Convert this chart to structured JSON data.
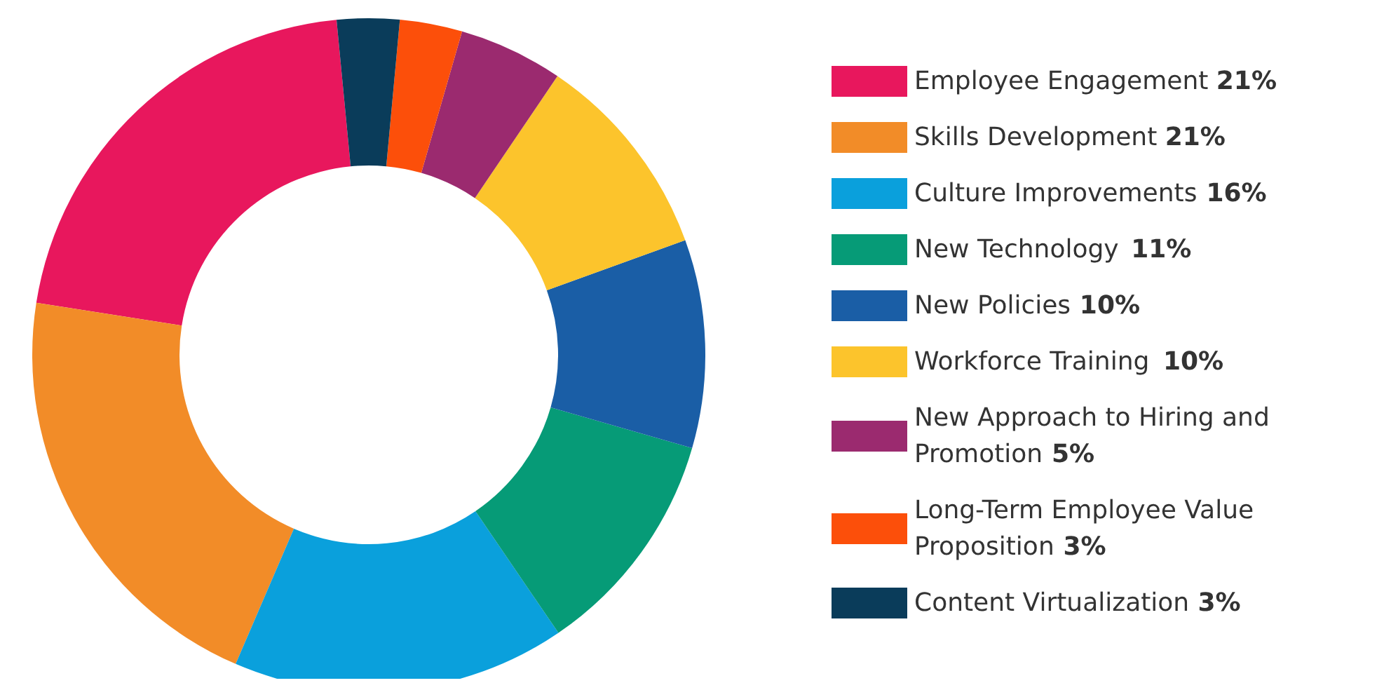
{
  "chart_data": {
    "type": "donut",
    "categories": [
      "Employee Engagement",
      "Skills Development",
      "Culture Improvements",
      "New Technology",
      "New Policies",
      "Workforce Training",
      "New Approach to Hiring and Promotion",
      "Long-Term Employee Value Proposition",
      "Content Virtualization"
    ],
    "values": [
      21,
      21,
      16,
      11,
      10,
      10,
      5,
      3,
      3
    ],
    "colors": [
      "#e8175d",
      "#f28c28",
      "#0aa0dc",
      "#069b77",
      "#1a5ea6",
      "#fcc42c",
      "#9b2a6f",
      "#fc4f0a",
      "#0a3c5a"
    ],
    "value_labels": [
      "21%",
      "21%",
      "16%",
      "11%",
      "10%",
      "10%",
      "5%",
      "3%",
      "3%"
    ],
    "legend": "right"
  }
}
